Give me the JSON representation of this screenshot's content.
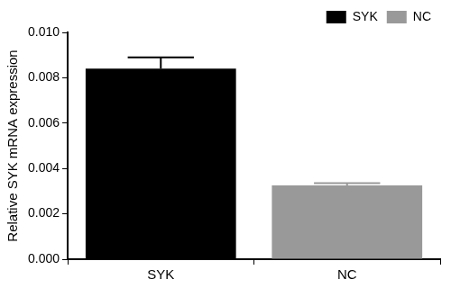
{
  "chart_data": {
    "type": "bar",
    "y_label": "Relative SYK mRNA expression",
    "categories": [
      "SYK",
      "NC"
    ],
    "series": [
      {
        "name": "SYK",
        "color": "#000000",
        "values": [
          0.0084,
          null
        ],
        "errors": [
          0.0005,
          null
        ]
      },
      {
        "name": "NC",
        "color": "#999999",
        "values": [
          null,
          0.00325
        ],
        "errors": [
          null,
          0.0001
        ]
      }
    ],
    "ylim": [
      0,
      0.01
    ],
    "yticks": [
      {
        "value": 0,
        "label": "0.000"
      },
      {
        "value": 0.002,
        "label": "0.002"
      },
      {
        "value": 0.004,
        "label": "0.004"
      },
      {
        "value": 0.006,
        "label": "0.006"
      },
      {
        "value": 0.008,
        "label": "0.008"
      },
      {
        "value": 0.01,
        "label": "0.010"
      }
    ],
    "grid": false,
    "legend": "top-right"
  }
}
